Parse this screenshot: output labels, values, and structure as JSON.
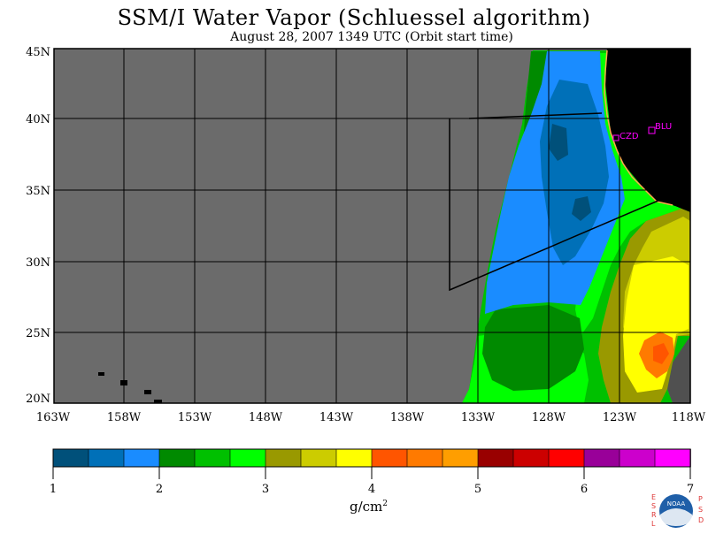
{
  "title": "SSM/I Water Vapor (Schluessel algorithm)",
  "subtitle": "August 28, 2007  1349 UTC  (Orbit start time)",
  "map": {
    "lat_labels": [
      "45N",
      "40N",
      "35N",
      "30N",
      "25N",
      "20N"
    ],
    "lon_labels": [
      "163W",
      "158W",
      "153W",
      "148W",
      "143W",
      "138W",
      "133W",
      "128W",
      "123W",
      "118W"
    ],
    "stations": [
      {
        "name": "CZD"
      },
      {
        "name": "BLU"
      }
    ],
    "colors": {
      "nodata": "#6b6b6b",
      "land": "#000000",
      "coast": "#ffa64d",
      "station": "#ff00ff"
    }
  },
  "colorbar": {
    "colors": [
      "#00507a",
      "#0070b8",
      "#1a8cff",
      "#008a00",
      "#00c000",
      "#00ff00",
      "#999900",
      "#cccc00",
      "#ffff00",
      "#ff5500",
      "#ff7a00",
      "#ff9e00",
      "#990000",
      "#cc0000",
      "#ff0000",
      "#990099",
      "#cc00cc",
      "#ff00ff"
    ],
    "tick_labels": [
      "1",
      "2",
      "3",
      "4",
      "5",
      "6",
      "7"
    ],
    "units": "g/cm",
    "units_exp": "2"
  },
  "logo": {
    "left_letters": [
      "E",
      "S",
      "R",
      "L"
    ],
    "right_letters": [
      "P",
      "S",
      "D"
    ],
    "center_text": "NOAA"
  }
}
